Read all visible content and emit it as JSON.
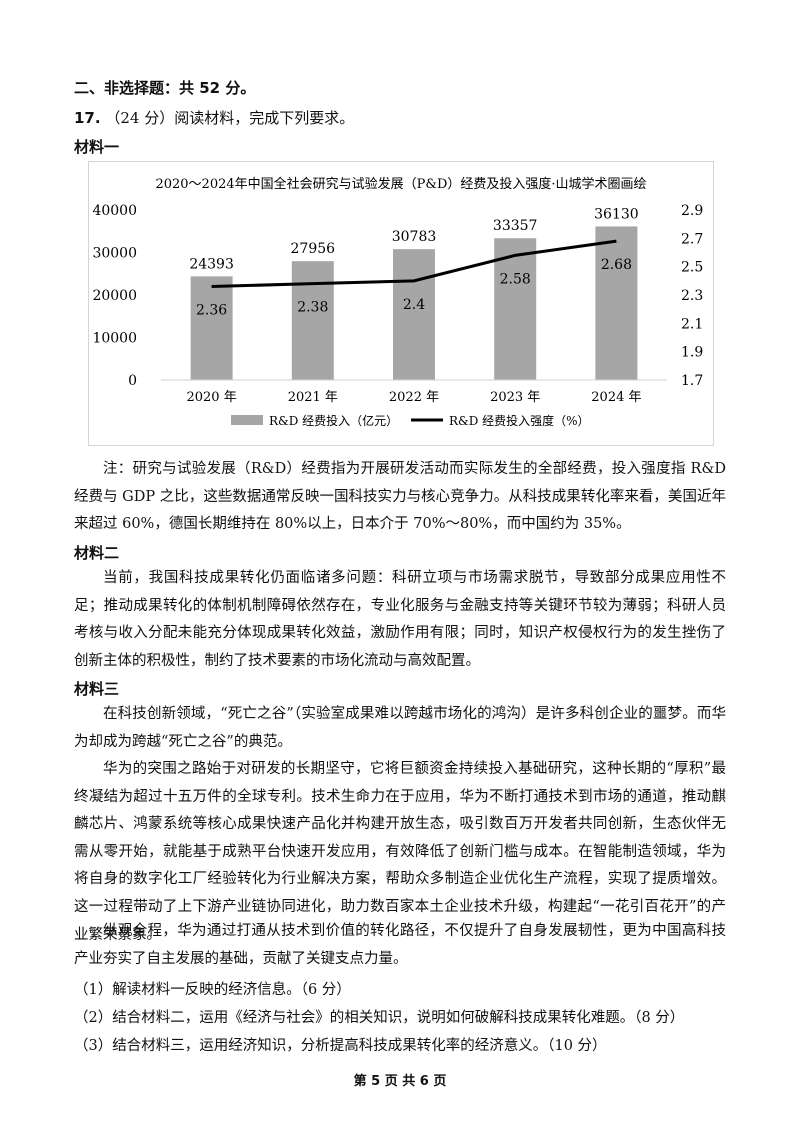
{
  "section": "二、非选择题：共 52 分。",
  "question": {
    "number": "17.",
    "text": "（24 分）阅读材料，完成下列要求。"
  },
  "material1": {
    "heading": "材料一",
    "note": "注：研究与试验发展（R&D）经费指为开展研发活动而实际发生的全部经费，投入强度指 R&D 经费与 GDP 之比，这些数据通常反映一国科技实力与核心竞争力。从科技成果转化率来看，美国近年来超过 60%，德国长期维持在 80%以上，日本介于 70%～80%，而中国约为 35%。"
  },
  "chart_data": {
    "type": "bar",
    "title": "2020～2024年中国全社会研究与试验发展（P&D）经费及投入强度·山城学术圈画绘",
    "categories": [
      "2020 年",
      "2021 年",
      "2022 年",
      "2023 年",
      "2024 年"
    ],
    "series": [
      {
        "name": "R&D 经费投入（亿元）",
        "type": "bar",
        "axis": "left",
        "values": [
          24393,
          27956,
          30783,
          33357,
          36130
        ],
        "color": "#a6a6a6"
      },
      {
        "name": "R&D 经费投入强度（%）",
        "type": "line",
        "axis": "right",
        "values": [
          2.36,
          2.38,
          2.4,
          2.58,
          2.68
        ],
        "color": "#000000"
      }
    ],
    "y_left": {
      "min": 0,
      "max": 40000,
      "ticks": [
        0,
        10000,
        20000,
        30000,
        40000
      ]
    },
    "y_right": {
      "min": 1.7,
      "max": 2.9,
      "ticks": [
        "1.7",
        "1.9",
        "2.1",
        "2.3",
        "2.5",
        "2.7",
        "2.9"
      ]
    },
    "grid": false,
    "legend": "bottom"
  },
  "material2": {
    "heading": "材料二",
    "text": "当前，我国科技成果转化仍面临诸多问题：科研立项与市场需求脱节，导致部分成果应用性不足；推动成果转化的体制机制障碍依然存在，专业化服务与金融支持等关键环节较为薄弱；科研人员考核与收入分配未能充分体现成果转化效益，激励作用有限；同时，知识产权侵权行为的发生挫伤了创新主体的积极性，制约了技术要素的市场化流动与高效配置。"
  },
  "material3": {
    "heading": "材料三",
    "paragraphs": [
      "在科技创新领域，“死亡之谷”（实验室成果难以跨越市场化的鸿沟）是许多科创企业的噩梦。而华为却成为跨越“死亡之谷”的典范。",
      "华为的突围之路始于对研发的长期坚守，它将巨额资金持续投入基础研究，这种长期的“厚积”最终凝结为超过十五万件的全球专利。技术生命力在于应用，华为不断打通技术到市场的通道，推动麒麟芯片、鸿蒙系统等核心成果快速产品化并构建开放生态，吸引数百万开发者共同创新，生态伙伴无需从零开始，就能基于成熟平台快速开发应用，有效降低了创新门槛与成本。在智能制造领域，华为将自身的数字化工厂经验转化为行业解决方案，帮助众多制造企业优化生产流程，实现了提质增效。这一过程带动了上下游产业链协同进化，助力数百家本土企业技术升级，构建起“一花引百花开”的产业繁荣景象。",
      "纵观全程，华为通过打通从技术到价值的转化路径，不仅提升了自身发展韧性，更为中国高科技产业夯实了自主发展的基础，贡献了关键支点力量。"
    ]
  },
  "requirements": [
    "（1）解读材料一反映的经济信息。（6 分）",
    "（2）结合材料二，运用《经济与社会》的相关知识，说明如何破解科技成果转化难题。（8 分）",
    "（3）结合材料三，运用经济知识，分析提高科技成果转化率的经济意义。（10 分）"
  ],
  "footer": "第 5 页 共 6 页"
}
